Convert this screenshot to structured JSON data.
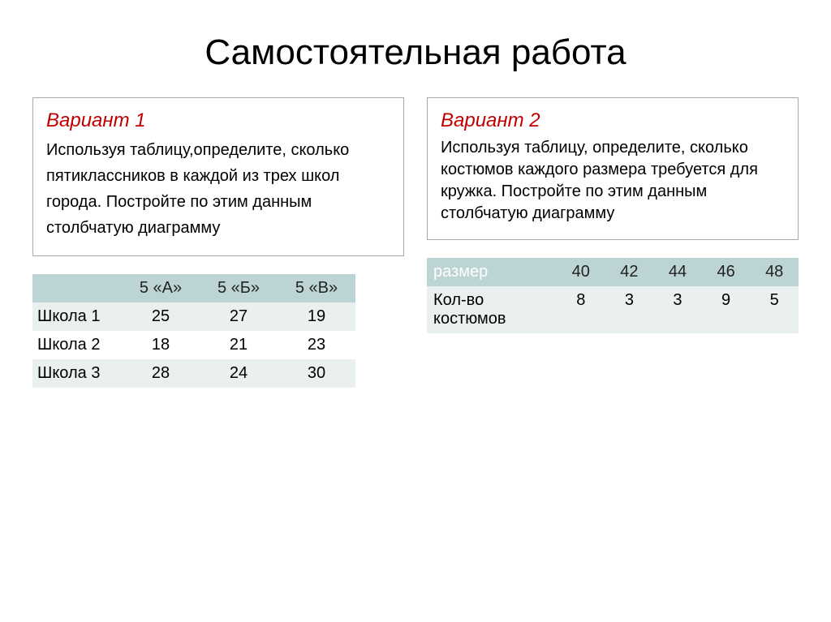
{
  "title": "Самостоятельная работа",
  "variant1": {
    "heading": "Вариант 1",
    "text": "Используя таблицу,определите, сколько пятиклассников в каждой из трех школ города. Постройте по этим данным столбчатую диаграмму",
    "table": {
      "type": "table",
      "header_bg": "#bcd4d4",
      "row_even_bg": "#eaf0f0",
      "row_odd_bg": "#ffffff",
      "text_color": "#000000",
      "fontsize": 20,
      "columns": [
        "",
        "5 «А»",
        "5 «Б»",
        "5 «В»"
      ],
      "rows": [
        [
          "Школа 1",
          25,
          27,
          19
        ],
        [
          "Школа 2",
          18,
          21,
          23
        ],
        [
          "Школа 3",
          28,
          24,
          30
        ]
      ]
    }
  },
  "variant2": {
    "heading": "Вариант 2",
    "text": "Используя таблицу, определите, сколько костюмов каждого размера требуется для кружка. Постройте по этим данным столбчатую диаграмму",
    "table": {
      "type": "table",
      "header_bg": "#bcd4d4",
      "row_bg": "#eaf0f0",
      "header_label_color": "#ffffff",
      "text_color": "#000000",
      "fontsize": 20,
      "header_label": "размер",
      "sizes": [
        40,
        42,
        44,
        46,
        48
      ],
      "row_label": "Кол-во костюмов",
      "counts": [
        8,
        3,
        3,
        9,
        5
      ]
    }
  },
  "colors": {
    "variant_title": "#c00000",
    "box_border": "#a9a9a9",
    "background": "#ffffff"
  }
}
